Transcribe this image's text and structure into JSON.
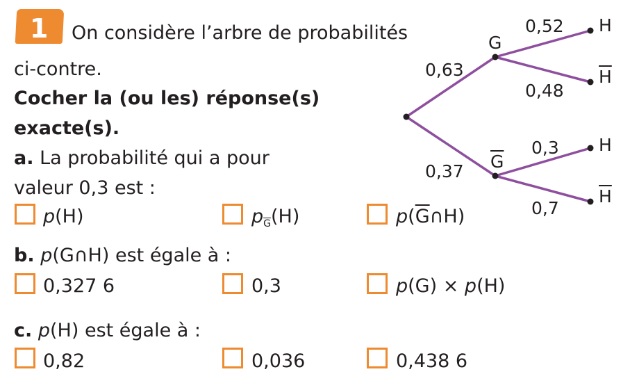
{
  "exercise": {
    "number": "1",
    "intro_line1": "On considère l’arbre de probabilités",
    "intro_line2": "ci-contre.",
    "instruction_line1": "Cocher la (ou les) réponse(s)",
    "instruction_line2": "exacte(s).",
    "colors": {
      "accent": "#ee8a2f",
      "tree": "#8e4f9e"
    }
  },
  "questions": [
    {
      "letter": "a.",
      "prompt_line1": "La probabilité qui a pour",
      "prompt_line2": "valeur 0,3 est :",
      "options": [
        {
          "p": "p",
          "rest": "(H)"
        },
        {
          "p": "p",
          "sub": "G",
          "rest": "(H)"
        },
        {
          "p": "p",
          "open": "(",
          "bar": "G",
          "rest": "∩H)"
        }
      ]
    },
    {
      "letter": "b.",
      "p": "p",
      "prompt": "(G∩H) est égale à :",
      "options": [
        {
          "text": "0,327 6"
        },
        {
          "text": "0,3"
        },
        {
          "p": "p",
          "mid": "(G) × ",
          "p2": "p",
          "rest": "(H)"
        }
      ]
    },
    {
      "letter": "c.",
      "p": "p",
      "prompt": "(H) est égale à :",
      "options": [
        {
          "text": "0,82"
        },
        {
          "text": "0,036"
        },
        {
          "text": "0,438 6"
        }
      ]
    }
  ],
  "tree": {
    "nodes": {
      "g": "G",
      "g_bar": "G",
      "h1": "H",
      "h1_bar": "H",
      "h2": "H",
      "h2_bar": "H"
    },
    "probabilities": {
      "root_g": "0,63",
      "root_g_bar": "0,37",
      "g_h": "0,52",
      "g_h_bar": "0,48",
      "gbar_h": "0,3",
      "gbar_h_bar": "0,7"
    }
  }
}
